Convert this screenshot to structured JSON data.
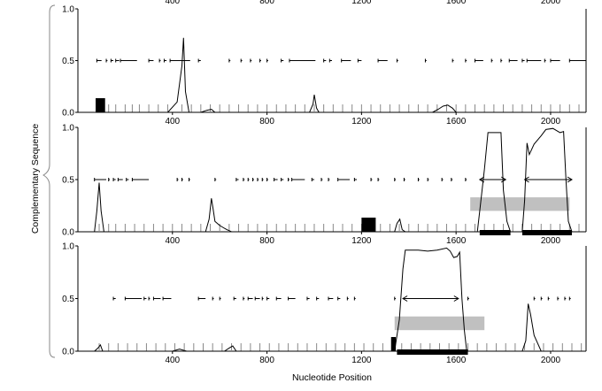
{
  "chart_data": {
    "type": "line",
    "ylabel": "Complementary Sequence",
    "xlabel": "Nucleotide Position",
    "xlim": [
      0,
      2150
    ],
    "ylim": [
      0,
      1.0
    ],
    "xticks": [
      400,
      800,
      1200,
      1600,
      2000
    ],
    "xtick_labels": [
      "400",
      "800",
      "1200",
      "1600",
      "2000"
    ],
    "yticks": [
      0,
      0.5,
      1.0
    ],
    "ytick_labels": [
      "0.0",
      "0.5",
      "1.0"
    ],
    "grid": false,
    "legend": "none",
    "panels": [
      {
        "series": [
          {
            "points": [
              [
                70,
                0
              ],
              [
                100,
                0
              ],
              [
                380,
                0
              ],
              [
                420,
                0.1
              ],
              [
                440,
                0.45
              ],
              [
                447,
                0.72
              ],
              [
                455,
                0.2
              ],
              [
                470,
                0
              ],
              [
                520,
                0
              ],
              [
                545,
                0.02
              ],
              [
                565,
                0.03
              ],
              [
                580,
                0
              ],
              [
                980,
                0
              ],
              [
                995,
                0.08
              ],
              [
                1000,
                0.17
              ],
              [
                1010,
                0.04
              ],
              [
                1020,
                0
              ],
              [
                1500,
                0
              ],
              [
                1525,
                0.03
              ],
              [
                1545,
                0.06
              ],
              [
                1565,
                0.07
              ],
              [
                1585,
                0.04
              ],
              [
                1600,
                0
              ],
              [
                2150,
                0
              ]
            ]
          }
        ],
        "dash_segments": [
          [
            80,
            100
          ],
          [
            120,
            125
          ],
          [
            140,
            150
          ],
          [
            160,
            175
          ],
          [
            180,
            250
          ],
          [
            300,
            320
          ],
          [
            345,
            350
          ],
          [
            365,
            375
          ],
          [
            390,
            475
          ],
          [
            510,
            520
          ],
          [
            640,
            645
          ],
          [
            690,
            695
          ],
          [
            730,
            735
          ],
          [
            770,
            775
          ],
          [
            800,
            805
          ],
          [
            860,
            870
          ],
          [
            895,
            1005
          ],
          [
            1040,
            1050
          ],
          [
            1065,
            1075
          ],
          [
            1115,
            1155
          ],
          [
            1185,
            1200
          ],
          [
            1270,
            1310
          ],
          [
            1350,
            1355
          ],
          [
            1470,
            1475
          ],
          [
            1585,
            1590
          ],
          [
            1640,
            1645
          ],
          [
            1680,
            1715
          ],
          [
            1750,
            1755
          ],
          [
            1790,
            1795
          ],
          [
            1825,
            1860
          ],
          [
            1880,
            1890
          ],
          [
            1900,
            1960
          ],
          [
            1975,
            1980
          ],
          [
            2000,
            2040
          ],
          [
            2080,
            2150
          ]
        ],
        "bars": [
          [
            75,
            95
          ],
          [
            90,
            115
          ]
        ],
        "ticks": [
          90,
          110,
          130,
          160,
          200,
          230,
          260,
          300,
          340,
          380,
          440,
          480,
          520,
          560,
          600,
          640,
          680,
          720,
          760,
          800,
          840,
          880,
          920,
          960,
          1000,
          1040,
          1080,
          1120,
          1160,
          1200,
          1240,
          1280,
          1320,
          1360,
          1400,
          1440,
          1480,
          1520,
          1560,
          1600,
          1640,
          1680,
          1720,
          1760,
          1800,
          1840,
          1880,
          1920,
          1960,
          2000,
          2040,
          2080,
          2120
        ]
      },
      {
        "series": [
          {
            "points": [
              [
                70,
                0
              ],
              [
                80,
                0.2
              ],
              [
                90,
                0.47
              ],
              [
                98,
                0.2
              ],
              [
                110,
                0
              ],
              [
                540,
                0
              ],
              [
                555,
                0.12
              ],
              [
                565,
                0.32
              ],
              [
                572,
                0.22
              ],
              [
                580,
                0.1
              ],
              [
                600,
                0.06
              ],
              [
                630,
                0.02
              ],
              [
                650,
                0
              ],
              [
                1340,
                0
              ],
              [
                1350,
                0.08
              ],
              [
                1362,
                0.12
              ],
              [
                1372,
                0.02
              ],
              [
                1385,
                0
              ],
              [
                1660,
                0
              ],
              [
                1690,
                0
              ],
              [
                1700,
                0.2
              ],
              [
                1720,
                0.6
              ],
              [
                1735,
                0.95
              ],
              [
                1790,
                0.95
              ],
              [
                1800,
                0.4
              ],
              [
                1815,
                0.1
              ],
              [
                1830,
                0
              ],
              [
                1880,
                0
              ],
              [
                1890,
                0.3
              ],
              [
                1900,
                0.85
              ],
              [
                1910,
                0.74
              ],
              [
                1930,
                0.84
              ],
              [
                1960,
                0.92
              ],
              [
                1980,
                0.98
              ],
              [
                2010,
                0.99
              ],
              [
                2040,
                0.95
              ],
              [
                2055,
                0.96
              ],
              [
                2065,
                0.5
              ],
              [
                2075,
                0.1
              ],
              [
                2090,
                0
              ],
              [
                2150,
                0
              ]
            ]
          }
        ],
        "dash_segments": [
          [
            70,
            120
          ],
          [
            130,
            135
          ],
          [
            150,
            160
          ],
          [
            170,
            190
          ],
          [
            205,
            215
          ],
          [
            230,
            300
          ],
          [
            420,
            425
          ],
          [
            440,
            445
          ],
          [
            470,
            475
          ],
          [
            580,
            585
          ],
          [
            670,
            680
          ],
          [
            700,
            705
          ],
          [
            720,
            725
          ],
          [
            740,
            745
          ],
          [
            760,
            765
          ],
          [
            780,
            785
          ],
          [
            800,
            805
          ],
          [
            830,
            845
          ],
          [
            860,
            870
          ],
          [
            890,
            895
          ],
          [
            905,
            960
          ],
          [
            990,
            1000
          ],
          [
            1030,
            1035
          ],
          [
            1060,
            1065
          ],
          [
            1100,
            1150
          ],
          [
            1170,
            1180
          ],
          [
            1240,
            1245
          ],
          [
            1270,
            1275
          ],
          [
            1340,
            1345
          ],
          [
            1380,
            1385
          ],
          [
            1440,
            1445
          ],
          [
            1480,
            1485
          ],
          [
            1540,
            1545
          ],
          [
            1580,
            1585
          ],
          [
            1640,
            1645
          ]
        ],
        "arrows": [
          [
            1700,
            1810
          ],
          [
            1890,
            2090
          ]
        ],
        "boxes": [
          [
            1660,
            2080
          ]
        ],
        "bars": [
          [
            1200,
            1240
          ],
          [
            1230,
            1260
          ],
          [
            1700,
            1830
          ],
          [
            1880,
            2090
          ]
        ],
        "ticks": [
          90,
          130,
          160,
          200,
          240,
          280,
          320,
          360,
          400,
          440,
          480,
          520,
          560,
          600,
          640,
          680,
          720,
          760,
          800,
          840,
          880,
          920,
          960,
          1000,
          1040,
          1080,
          1120,
          1160,
          1200,
          1240,
          1280,
          1320,
          1360,
          1400,
          1440,
          1480,
          1520,
          1560,
          1600,
          1640,
          1680,
          1720,
          1760,
          1800,
          1840,
          1880,
          1920,
          1960,
          2000,
          2040,
          2080,
          2120
        ]
      },
      {
        "series": [
          {
            "points": [
              [
                70,
                0
              ],
              [
                85,
                0.03
              ],
              [
                95,
                0.06
              ],
              [
                105,
                0
              ],
              [
                400,
                0
              ],
              [
                430,
                0.02
              ],
              [
                460,
                0
              ],
              [
                620,
                0
              ],
              [
                640,
                0.03
              ],
              [
                655,
                0.05
              ],
              [
                670,
                0
              ],
              [
                1340,
                0
              ],
              [
                1360,
                0.3
              ],
              [
                1375,
                0.78
              ],
              [
                1385,
                0.96
              ],
              [
                1440,
                0.96
              ],
              [
                1480,
                0.95
              ],
              [
                1520,
                0.96
              ],
              [
                1560,
                0.98
              ],
              [
                1575,
                0.95
              ],
              [
                1590,
                0.89
              ],
              [
                1605,
                0.9
              ],
              [
                1615,
                0.94
              ],
              [
                1625,
                0.5
              ],
              [
                1635,
                0.2
              ],
              [
                1645,
                0
              ],
              [
                1880,
                0
              ],
              [
                1895,
                0.1
              ],
              [
                1905,
                0.45
              ],
              [
                1915,
                0.35
              ],
              [
                1930,
                0.15
              ],
              [
                1960,
                0
              ],
              [
                2150,
                0
              ]
            ]
          }
        ],
        "dash_segments": [
          [
            150,
            160
          ],
          [
            200,
            270
          ],
          [
            280,
            290
          ],
          [
            300,
            305
          ],
          [
            320,
            350
          ],
          [
            360,
            395
          ],
          [
            510,
            540
          ],
          [
            570,
            575
          ],
          [
            600,
            605
          ],
          [
            660,
            670
          ],
          [
            700,
            705
          ],
          [
            720,
            740
          ],
          [
            750,
            770
          ],
          [
            780,
            785
          ],
          [
            800,
            810
          ],
          [
            840,
            860
          ],
          [
            890,
            920
          ],
          [
            970,
            980
          ],
          [
            1010,
            1020
          ],
          [
            1060,
            1080
          ],
          [
            1100,
            1110
          ],
          [
            1140,
            1145
          ],
          [
            1170,
            1175
          ],
          [
            1340,
            1345
          ],
          [
            1650,
            1655
          ],
          [
            1930,
            1935
          ],
          [
            1960,
            1965
          ],
          [
            1990,
            1995
          ],
          [
            2030,
            2035
          ],
          [
            2060,
            2065
          ],
          [
            2080,
            2085
          ]
        ],
        "arrows": [
          [
            1375,
            1610
          ]
        ],
        "boxes": [
          [
            1340,
            1720
          ]
        ],
        "bars": [
          [
            1325,
            1345
          ],
          [
            1350,
            1650
          ]
        ],
        "ticks": [
          90,
          130,
          170,
          210,
          250,
          290,
          330,
          370,
          410,
          450,
          490,
          530,
          570,
          610,
          650,
          690,
          730,
          770,
          810,
          850,
          890,
          930,
          970,
          1010,
          1050,
          1090,
          1130,
          1170,
          1210,
          1250,
          1290,
          1330,
          1370,
          1410,
          1450,
          1490,
          1530,
          1570,
          1610,
          1650,
          1690,
          1730,
          1770,
          1810,
          1850,
          1890,
          1930,
          1970,
          2010,
          2050,
          2090,
          2130
        ]
      }
    ]
  }
}
